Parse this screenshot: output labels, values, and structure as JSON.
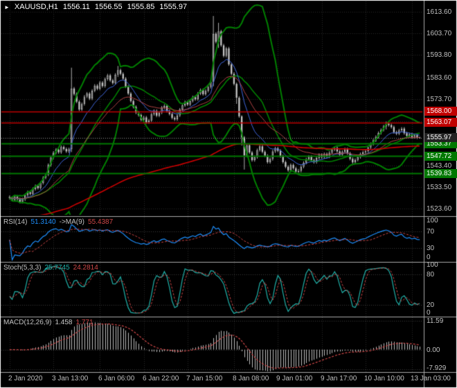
{
  "header": {
    "marker": "►",
    "symbol_period": "XAUUSD,H1",
    "open": "1556.11",
    "high": "1556.55",
    "low": "1555.85",
    "close": "1555.97"
  },
  "colors": {
    "background": "#000000",
    "frame": "#FFFFFF",
    "grid": "#2A2A2A",
    "level_grid": "#3C3C3C",
    "separator": "#ABABAB",
    "axis_text": "#C0C0C0",
    "candle": "#C4C4C4",
    "bollinger_green": "#008000",
    "ma_fast_blue": "#4169E1",
    "ma_mid_red": "#B24444",
    "ma_long_red": "#CC0000",
    "resistance_red": "#C00000",
    "support_green": "#007800",
    "rsi_line": "#1E90FF",
    "stoch_line": "#20B2AA",
    "signal_red": "#D04848",
    "macd_hist": "#C0C0C0",
    "current_price_box": "#222222"
  },
  "chart_data": {
    "type": "candlestick",
    "symbol": "XAUUSD",
    "timeframe": "H1",
    "price_range": [
      1521.5,
      1617.0
    ],
    "price_axis_ticks": [
      1613.6,
      1603.7,
      1593.8,
      1583.6,
      1573.7,
      1543.4,
      1533.5,
      1523.6
    ],
    "grid_extra_prices": [
      1563.6,
      1553.5
    ],
    "hlines": [
      {
        "price": 1568.0,
        "label": "1568.00",
        "color": "#C00000",
        "width": 1.5
      },
      {
        "price": 1563.07,
        "label": "1563.07",
        "color": "#C00000",
        "width": 1.5
      },
      {
        "price": 1553.37,
        "label": "1553.37",
        "color": "#007800",
        "width": 2
      },
      {
        "price": 1547.72,
        "label": "1547.72",
        "color": "#007800",
        "width": 2
      },
      {
        "price": 1539.83,
        "label": "1539.83",
        "color": "#007800",
        "width": 2
      }
    ],
    "current_price": {
      "value": 1555.97,
      "label": "1555.97"
    },
    "time_ticks": [
      {
        "bar": 0,
        "label": "2 Jan 2020"
      },
      {
        "bar": 17,
        "label": "3 Jan 13:00"
      },
      {
        "bar": 35,
        "label": "6 Jan 06:00"
      },
      {
        "bar": 52,
        "label": "6 Jan 22:00"
      },
      {
        "bar": 69,
        "label": "7 Jan 15:00"
      },
      {
        "bar": 87,
        "label": "8 Jan 08:00"
      },
      {
        "bar": 104,
        "label": "9 Jan 01:00"
      },
      {
        "bar": 121,
        "label": "9 Jan 17:00"
      },
      {
        "bar": 138,
        "label": "10 Jan 10:00"
      },
      {
        "bar": 156,
        "label": "13 Jan 03:00"
      }
    ],
    "candles": {
      "first_open": 1529.0,
      "default_wick": 0.7,
      "closes": [
        1528.5,
        1527.6,
        1529.2,
        1528.0,
        1526.8,
        1527.9,
        1529.8,
        1531.2,
        1530.4,
        1532.6,
        1534.0,
        1533.1,
        1535.4,
        1537.8,
        1539.2,
        1543.6,
        1547.0,
        1549.2,
        1550.6,
        1549.4,
        1551.8,
        1550.9,
        1549.8,
        1550.8,
        1578.5,
        1576.0,
        1572.5,
        1568.9,
        1571.4,
        1574.8,
        1576.2,
        1573.9,
        1577.5,
        1579.8,
        1578.4,
        1581.2,
        1579.6,
        1582.8,
        1584.5,
        1582.2,
        1581.0,
        1584.8,
        1586.9,
        1585.2,
        1583.0,
        1579.4,
        1576.2,
        1572.8,
        1570.1,
        1567.5,
        1566.4,
        1564.2,
        1565.3,
        1563.1,
        1563.9,
        1566.8,
        1568.3,
        1566.1,
        1567.5,
        1569.8,
        1570.6,
        1568.2,
        1566.9,
        1565.1,
        1564.4,
        1566.2,
        1568.9,
        1570.8,
        1572.3,
        1571.2,
        1572.8,
        1574.5,
        1573.6,
        1576.2,
        1577.8,
        1575.9,
        1577.4,
        1579.2,
        1581.6,
        1603.5,
        1599.8,
        1604.6,
        1598.2,
        1593.4,
        1596.8,
        1589.5,
        1585.2,
        1580.6,
        1574.3,
        1565.8,
        1556.2,
        1547.9,
        1552.6,
        1549.3,
        1545.8,
        1547.2,
        1550.4,
        1552.1,
        1549.6,
        1547.8,
        1544.9,
        1546.3,
        1549.8,
        1551.2,
        1550.1,
        1547.6,
        1544.9,
        1542.8,
        1541.2,
        1543.6,
        1542.1,
        1540.6,
        1540.9,
        1542.8,
        1544.6,
        1546.2,
        1547.4,
        1545.8,
        1544.9,
        1546.8,
        1548.2,
        1547.1,
        1548.6,
        1547.4,
        1549.2,
        1550.6,
        1551.4,
        1549.8,
        1548.3,
        1549.6,
        1550.8,
        1548.9,
        1546.4,
        1544.8,
        1545.9,
        1547.2,
        1548.6,
        1549.4,
        1549.9,
        1551.6,
        1553.2,
        1554.8,
        1556.4,
        1558.2,
        1559.6,
        1561.2,
        1562.4,
        1561.8,
        1560.9,
        1558.6,
        1557.9,
        1559.4,
        1560.2,
        1558.1,
        1556.9,
        1557.6,
        1556.4,
        1557.2,
        1556.11,
        1555.97
      ],
      "wick_overrides": {
        "24": [
          1588.0,
          1549.5
        ],
        "42": [
          1588.8,
          1583.8
        ],
        "79": [
          1611.6,
          1579.5
        ],
        "81": [
          1608.5,
          1597.0
        ],
        "88": [
          1581.2,
          1571.5
        ],
        "90": [
          1566.3,
          1552.5
        ],
        "91": [
          1556.8,
          1541.5
        ],
        "111": [
          1542.8,
          1539.6
        ],
        "112": [
          1541.8,
          1539.9
        ],
        "146": [
          1563.4,
          1559.8
        ],
        "159": [
          1556.55,
          1555.85
        ]
      }
    },
    "overlays": {
      "bollinger": {
        "period": 20,
        "deviation": 2,
        "color": "#008000"
      },
      "ma_fast": {
        "period": 10,
        "type": "ema",
        "color": "#4169E1"
      },
      "ma_mid": {
        "period": 24,
        "type": "ema",
        "color": "#B24444"
      },
      "ma_long": {
        "seed": 1519,
        "alpha": 0.012,
        "color": "#CC0000"
      }
    },
    "indicators": {
      "rsi": {
        "name": "RSI(14)",
        "value": "51.3140",
        "ma_name": "->MA(9)",
        "ma_value": "55.4387",
        "period": 14,
        "ma_period": 9,
        "levels": [
          70,
          30
        ],
        "ticks": [
          100,
          70,
          30,
          0
        ],
        "range": [
          0,
          100
        ]
      },
      "stoch": {
        "name": "Stoch(5,3,3)",
        "k_value": "25.7745",
        "d_value": "24.2814",
        "k_period": 5,
        "slowing": 3,
        "d_period": 3,
        "levels": [
          80,
          20
        ],
        "ticks": [
          100,
          80,
          20,
          0
        ],
        "range": [
          0,
          100
        ]
      },
      "macd": {
        "name": "MACD(12,26,9)",
        "value": "1.458",
        "signal_value": "1.771",
        "fast": 12,
        "slow": 26,
        "signal": 9,
        "range": [
          -8.5,
          12.2
        ],
        "ticks": [
          {
            "v": 11.59,
            "label": "11.59"
          },
          {
            "v": 0,
            "label": "0.00"
          },
          {
            "v": -7.929,
            "label": "-7.929"
          }
        ]
      }
    }
  }
}
